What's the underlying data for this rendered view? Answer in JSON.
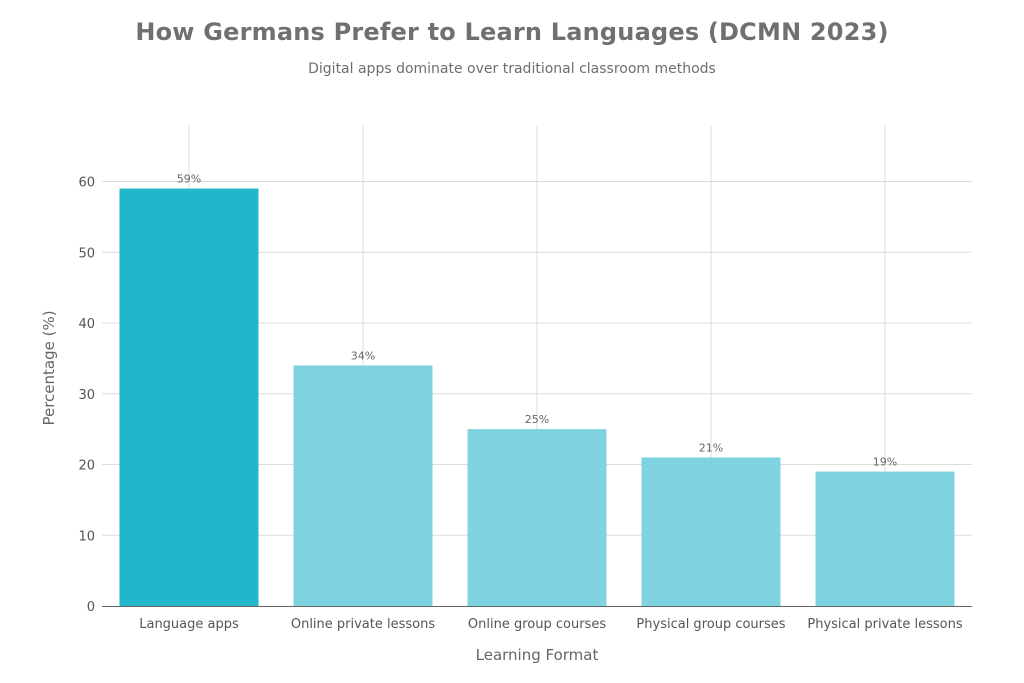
{
  "title": "How Germans Prefer to Learn Languages (DCMN 2023)",
  "subtitle": "Digital apps dominate over traditional classroom methods",
  "chart_data": {
    "type": "bar",
    "title": "How Germans Prefer to Learn Languages (DCMN 2023)",
    "subtitle": "Digital apps dominate over traditional classroom methods",
    "xlabel": "Learning Format",
    "ylabel": "Percentage (%)",
    "categories": [
      "Language apps",
      "Online private lessons",
      "Online group courses",
      "Physical group courses",
      "Physical private lessons"
    ],
    "values": [
      59,
      34,
      25,
      21,
      19
    ],
    "data_labels": [
      "59%",
      "34%",
      "25%",
      "21%",
      "19%"
    ],
    "ylim": [
      0,
      67
    ],
    "yticks": [
      0,
      10,
      20,
      30,
      40,
      50,
      60
    ],
    "grid": true,
    "legend": "none",
    "colors": {
      "highlight": "#20b6cc",
      "bar": "#7fd3e0",
      "grid": "#dcdcdc",
      "axis": "#666666"
    }
  }
}
